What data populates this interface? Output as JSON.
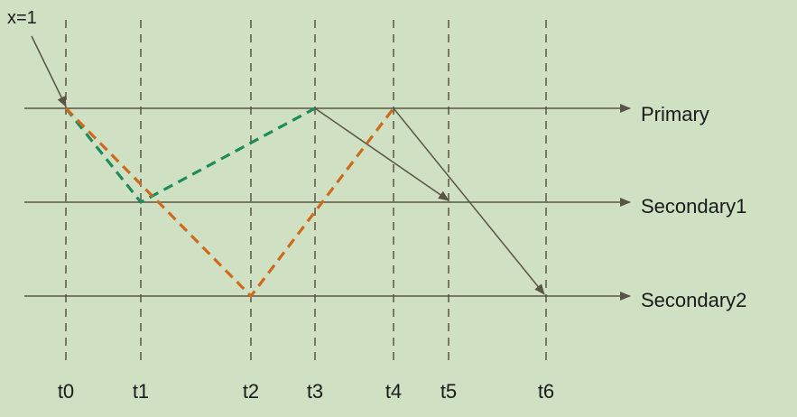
{
  "start_label": "x=1",
  "nodes": [
    {
      "id": "primary",
      "label": "Primary"
    },
    {
      "id": "secondary1",
      "label": "Secondary1"
    },
    {
      "id": "secondary2",
      "label": "Secondary2"
    }
  ],
  "times": [
    "t0",
    "t1",
    "t2",
    "t3",
    "t4",
    "t5",
    "t6"
  ],
  "colors": {
    "background": "#cfe0c3",
    "axis": "#5a5444",
    "time_guide": "#5a5444",
    "green_path": "#1f8a5b",
    "orange_path": "#cf6a1c"
  }
}
